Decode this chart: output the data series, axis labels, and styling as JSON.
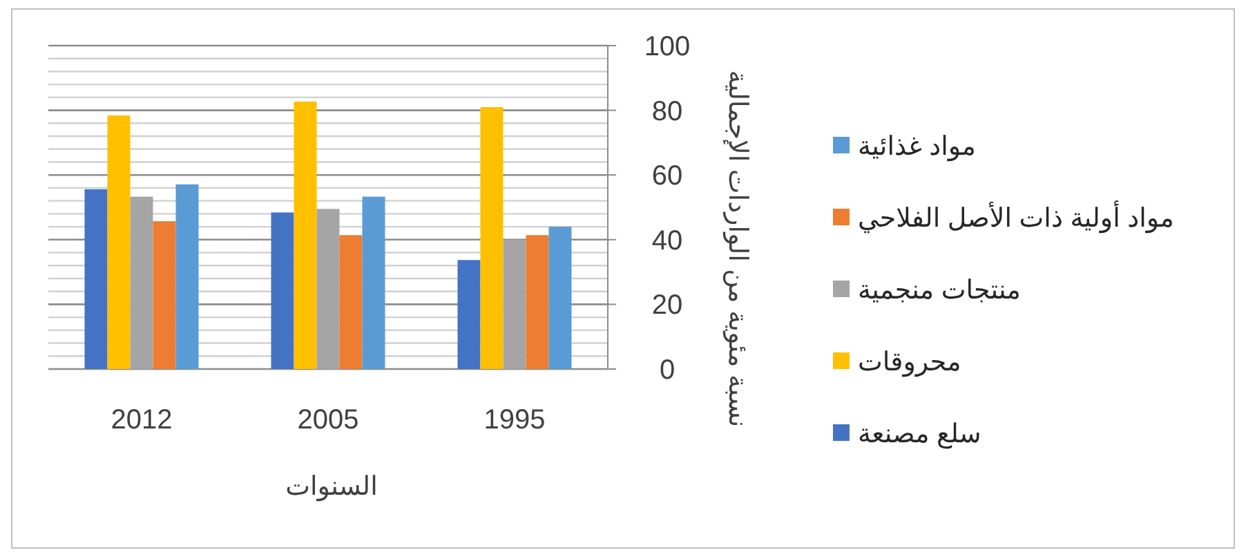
{
  "chart_data": {
    "type": "bar",
    "categories": [
      "2012",
      "2005",
      "1995"
    ],
    "xlabel": "السنوات",
    "ylabel": "نسبة مئوية من الواردات الإجمالية",
    "series": [
      {
        "name": "سلع مصنعة",
        "color": "#4472c4",
        "values": [
          55.6,
          48.4,
          33.7
        ]
      },
      {
        "name": "محروقات",
        "color": "#ffc000",
        "values": [
          78.4,
          82.7,
          81
        ]
      },
      {
        "name": "منتجات منجمية",
        "color": "#a5a5a5",
        "values": [
          53.3,
          49.5,
          40
        ]
      },
      {
        "name": "مواد أولية ذات الأصل الفلاحي",
        "color": "#ed7d31",
        "values": [
          45.7,
          41.4,
          41.4
        ]
      },
      {
        "name": "مواد غذائية",
        "color": "#5b9bd5",
        "values": [
          57.1,
          53.3,
          44
        ]
      }
    ],
    "ylim": [
      0,
      100
    ],
    "yticks": [
      0,
      {
        "value": 4,
        "label": null
      },
      {
        "value": 8,
        "label": null
      },
      {
        "value": 12,
        "label": null
      },
      {
        "value": 16,
        "label": null
      },
      20,
      {
        "value": 24,
        "label": null
      },
      {
        "value": 28,
        "label": null
      },
      {
        "value": 32,
        "label": null
      },
      {
        "value": 36,
        "label": null
      },
      40,
      {
        "value": 44,
        "label": null
      },
      {
        "value": 48,
        "label": null
      },
      {
        "value": 52,
        "label": null
      },
      {
        "value": 56,
        "label": null
      },
      60,
      {
        "value": 64,
        "label": null
      },
      {
        "value": 68,
        "label": null
      },
      {
        "value": 72,
        "label": null
      },
      {
        "value": 76,
        "label": null
      },
      80,
      {
        "value": 84,
        "label": null
      },
      {
        "value": 88,
        "label": null
      },
      {
        "value": 92,
        "label": null
      },
      {
        "value": 96,
        "label": null
      },
      100
    ],
    "grid": "y",
    "legend": "right"
  }
}
